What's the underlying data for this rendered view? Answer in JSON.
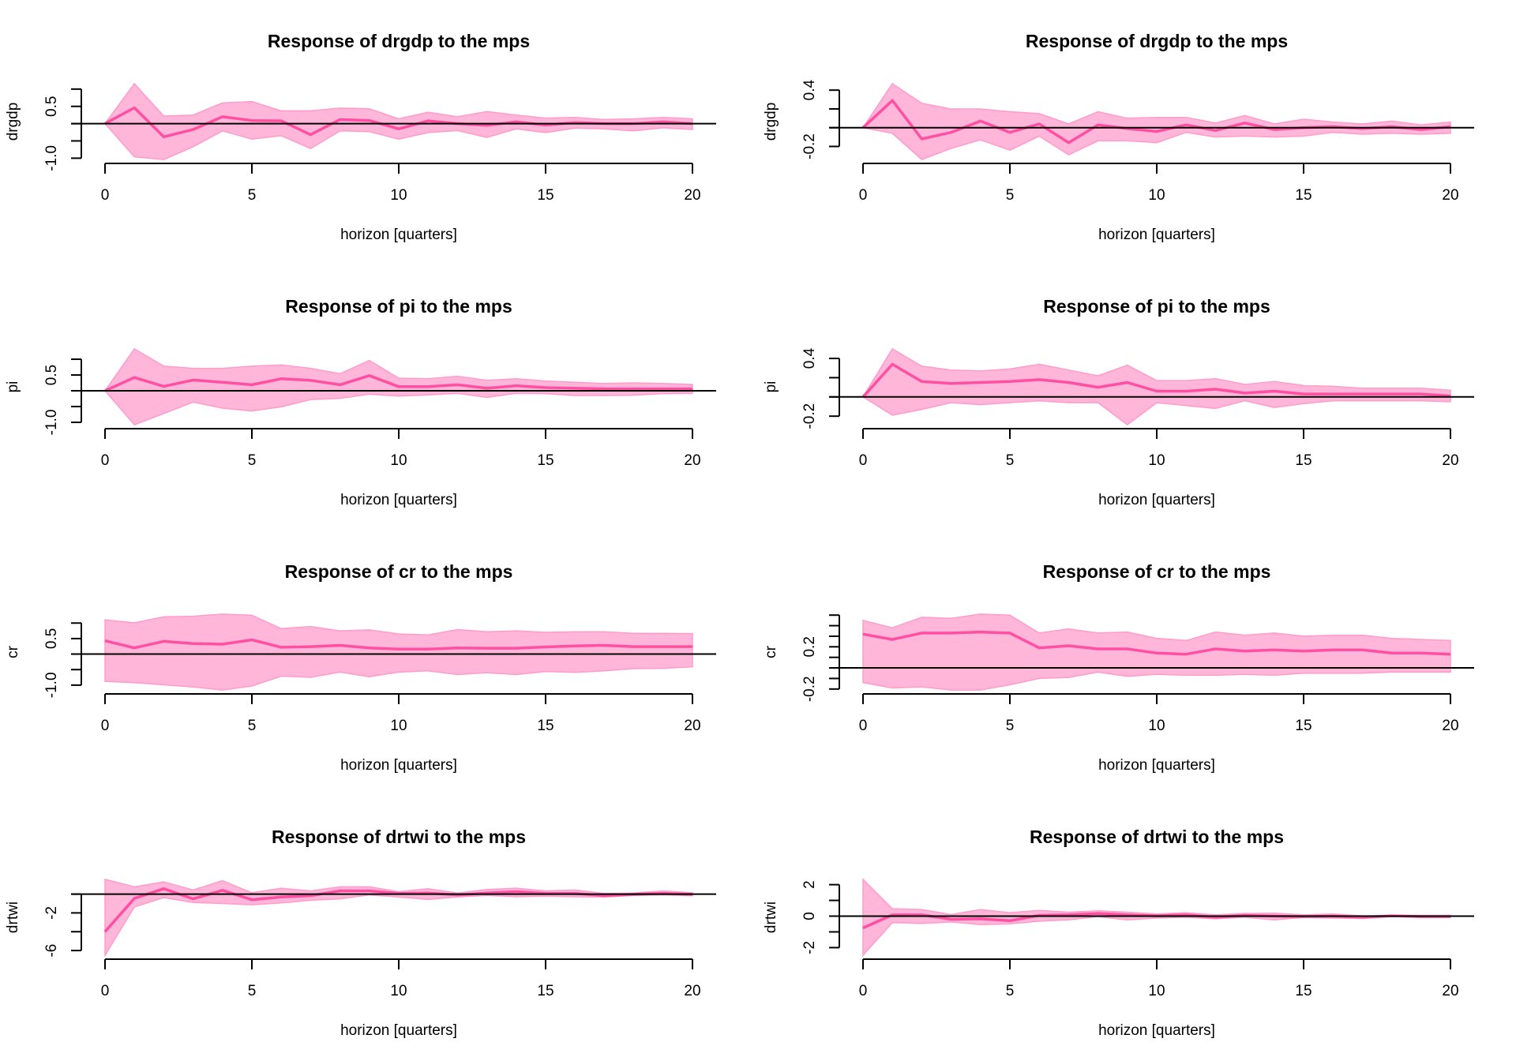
{
  "figure": {
    "layout": "4 rows x 2 columns",
    "colors": {
      "band_fill": "#ffb6d9",
      "band_edge": "#ff9ccb",
      "line": "#ff4fa3",
      "zero_line": "#000000"
    }
  },
  "chart_data": [
    {
      "type": "area",
      "title": "Response of drgdp to the mps",
      "xlabel": "horizon [quarters]",
      "ylabel": "drgdp",
      "x": [
        0,
        1,
        2,
        3,
        4,
        5,
        6,
        7,
        8,
        9,
        10,
        11,
        12,
        13,
        14,
        15,
        16,
        17,
        18,
        19,
        20
      ],
      "x_ticks": [
        0,
        5,
        10,
        15,
        20
      ],
      "y_ticks": [
        1.0,
        0.5,
        0,
        -0.5,
        -1.0
      ],
      "y_tick_labels": [
        "",
        "0.5",
        "",
        "",
        "-1.0"
      ],
      "series": [
        {
          "name": "response",
          "values": [
            0,
            0.46,
            -0.38,
            -0.17,
            0.2,
            0.09,
            0.08,
            -0.32,
            0.12,
            0.09,
            -0.15,
            0.08,
            0,
            -0.05,
            0.05,
            -0.04,
            0.03,
            0,
            0,
            0.05,
            0
          ]
        },
        {
          "name": "upper",
          "values": [
            0,
            1.16,
            0.22,
            0.25,
            0.6,
            0.64,
            0.37,
            0.37,
            0.45,
            0.43,
            0.14,
            0.33,
            0.2,
            0.35,
            0.25,
            0.16,
            0.18,
            0.12,
            0.14,
            0.18,
            0.14
          ]
        },
        {
          "name": "lower",
          "values": [
            0,
            -0.96,
            -1.04,
            -0.67,
            -0.21,
            -0.45,
            -0.35,
            -0.72,
            -0.21,
            -0.23,
            -0.45,
            -0.26,
            -0.2,
            -0.4,
            -0.15,
            -0.26,
            -0.13,
            -0.15,
            -0.21,
            -0.12,
            -0.17
          ]
        }
      ]
    },
    {
      "type": "area",
      "title": "Response of drgdp to the mps",
      "xlabel": "horizon [quarters]",
      "ylabel": "drgdp",
      "x": [
        0,
        1,
        2,
        3,
        4,
        5,
        6,
        7,
        8,
        9,
        10,
        11,
        12,
        13,
        14,
        15,
        16,
        17,
        18,
        19,
        20
      ],
      "x_ticks": [
        0,
        5,
        10,
        15,
        20
      ],
      "y_ticks": [
        0.4,
        0.2,
        0,
        -0.2
      ],
      "y_tick_labels": [
        "0.4",
        "",
        "",
        "-0.2"
      ],
      "series": [
        {
          "name": "response",
          "values": [
            0,
            0.29,
            -0.12,
            -0.05,
            0.07,
            -0.05,
            0.04,
            -0.16,
            0.03,
            -0.01,
            -0.04,
            0.03,
            -0.03,
            0.05,
            -0.02,
            0,
            0.01,
            -0.01,
            0.01,
            -0.02,
            0.01
          ]
        },
        {
          "name": "upper",
          "values": [
            0,
            0.47,
            0.26,
            0.2,
            0.2,
            0.17,
            0.15,
            0.04,
            0.17,
            0.1,
            0.11,
            0.11,
            0.05,
            0.13,
            0.04,
            0.09,
            0.06,
            0.04,
            0.07,
            0.03,
            0.06
          ]
        },
        {
          "name": "lower",
          "values": [
            0,
            -0.06,
            -0.34,
            -0.22,
            -0.13,
            -0.24,
            -0.09,
            -0.29,
            -0.14,
            -0.14,
            -0.16,
            -0.05,
            -0.1,
            -0.09,
            -0.1,
            -0.09,
            -0.05,
            -0.07,
            -0.06,
            -0.07,
            -0.06
          ]
        }
      ]
    },
    {
      "type": "area",
      "title": "Response of pi to the mps",
      "xlabel": "horizon [quarters]",
      "ylabel": "pi",
      "x": [
        0,
        1,
        2,
        3,
        4,
        5,
        6,
        7,
        8,
        9,
        10,
        11,
        12,
        13,
        14,
        15,
        16,
        17,
        18,
        19,
        20
      ],
      "x_ticks": [
        0,
        5,
        10,
        15,
        20
      ],
      "y_ticks": [
        1.0,
        0.5,
        0,
        -0.5,
        -1.0
      ],
      "y_tick_labels": [
        "",
        "0.5",
        "",
        "",
        "-1.0"
      ],
      "series": [
        {
          "name": "response",
          "values": [
            0,
            0.42,
            0.14,
            0.34,
            0.27,
            0.19,
            0.38,
            0.33,
            0.19,
            0.48,
            0.13,
            0.13,
            0.19,
            0.08,
            0.16,
            0.1,
            0.08,
            0.06,
            0.06,
            0.06,
            0.06
          ]
        },
        {
          "name": "upper",
          "values": [
            0,
            1.33,
            0.78,
            0.71,
            0.71,
            0.78,
            0.82,
            0.71,
            0.54,
            0.96,
            0.4,
            0.38,
            0.46,
            0.33,
            0.38,
            0.31,
            0.27,
            0.23,
            0.25,
            0.23,
            0.2
          ]
        },
        {
          "name": "lower",
          "values": [
            0,
            -1.08,
            -0.72,
            -0.36,
            -0.55,
            -0.64,
            -0.51,
            -0.28,
            -0.24,
            -0.11,
            -0.17,
            -0.13,
            -0.08,
            -0.21,
            -0.08,
            -0.09,
            -0.15,
            -0.15,
            -0.14,
            -0.09,
            -0.08
          ]
        }
      ]
    },
    {
      "type": "area",
      "title": "Response of pi to the mps",
      "xlabel": "horizon [quarters]",
      "ylabel": "pi",
      "x": [
        0,
        1,
        2,
        3,
        4,
        5,
        6,
        7,
        8,
        9,
        10,
        11,
        12,
        13,
        14,
        15,
        16,
        17,
        18,
        19,
        20
      ],
      "x_ticks": [
        0,
        5,
        10,
        15,
        20
      ],
      "y_ticks": [
        0.4,
        0.2,
        0,
        -0.2
      ],
      "y_tick_labels": [
        "0.4",
        "",
        "",
        "-0.2"
      ],
      "series": [
        {
          "name": "response",
          "values": [
            0,
            0.34,
            0.16,
            0.14,
            0.15,
            0.16,
            0.18,
            0.15,
            0.1,
            0.15,
            0.06,
            0.06,
            0.08,
            0.04,
            0.06,
            0.03,
            0.03,
            0.03,
            0.03,
            0.03,
            0.01
          ]
        },
        {
          "name": "upper",
          "values": [
            0,
            0.5,
            0.32,
            0.28,
            0.27,
            0.29,
            0.34,
            0.28,
            0.22,
            0.33,
            0.17,
            0.17,
            0.19,
            0.13,
            0.16,
            0.12,
            0.11,
            0.09,
            0.09,
            0.09,
            0.07
          ]
        },
        {
          "name": "lower",
          "values": [
            0,
            -0.19,
            -0.13,
            -0.06,
            -0.08,
            -0.06,
            -0.04,
            -0.06,
            -0.06,
            -0.29,
            -0.06,
            -0.09,
            -0.12,
            -0.04,
            -0.11,
            -0.07,
            -0.04,
            -0.04,
            -0.04,
            -0.04,
            -0.05
          ]
        }
      ]
    },
    {
      "type": "area",
      "title": "Response of cr to the mps",
      "xlabel": "horizon [quarters]",
      "ylabel": "cr",
      "x": [
        0,
        1,
        2,
        3,
        4,
        5,
        6,
        7,
        8,
        9,
        10,
        11,
        12,
        13,
        14,
        15,
        16,
        17,
        18,
        19,
        20
      ],
      "x_ticks": [
        0,
        5,
        10,
        15,
        20
      ],
      "y_ticks": [
        1.0,
        0.5,
        0,
        -0.5,
        -1.0
      ],
      "y_tick_labels": [
        "",
        "0.5",
        "",
        "",
        "-1.0"
      ],
      "series": [
        {
          "name": "response",
          "values": [
            0.43,
            0.2,
            0.41,
            0.34,
            0.32,
            0.46,
            0.22,
            0.24,
            0.28,
            0.2,
            0.16,
            0.16,
            0.2,
            0.19,
            0.19,
            0.23,
            0.26,
            0.28,
            0.24,
            0.24,
            0.24
          ]
        },
        {
          "name": "upper",
          "values": [
            1.1,
            1.01,
            1.2,
            1.22,
            1.29,
            1.25,
            0.82,
            0.89,
            0.75,
            0.78,
            0.65,
            0.62,
            0.79,
            0.72,
            0.75,
            0.7,
            0.72,
            0.72,
            0.67,
            0.67,
            0.66
          ]
        },
        {
          "name": "lower",
          "values": [
            -0.88,
            -0.92,
            -0.99,
            -1.06,
            -1.16,
            -1.03,
            -0.71,
            -0.75,
            -0.58,
            -0.73,
            -0.58,
            -0.54,
            -0.66,
            -0.6,
            -0.66,
            -0.56,
            -0.59,
            -0.54,
            -0.47,
            -0.46,
            -0.41
          ]
        }
      ]
    },
    {
      "type": "area",
      "title": "Response of cr to the mps",
      "xlabel": "horizon [quarters]",
      "ylabel": "cr",
      "x": [
        0,
        1,
        2,
        3,
        4,
        5,
        6,
        7,
        8,
        9,
        10,
        11,
        12,
        13,
        14,
        15,
        16,
        17,
        18,
        19,
        20
      ],
      "x_ticks": [
        0,
        5,
        10,
        15,
        20
      ],
      "y_ticks": [
        0.5,
        0.4,
        0.3,
        0.2,
        0.1,
        0,
        -0.1,
        -0.2
      ],
      "y_tick_labels": [
        "",
        "",
        "",
        "0.2",
        "",
        "",
        "",
        "-0.2"
      ],
      "series": [
        {
          "name": "response",
          "values": [
            0.32,
            0.27,
            0.33,
            0.33,
            0.34,
            0.33,
            0.19,
            0.21,
            0.18,
            0.18,
            0.14,
            0.13,
            0.18,
            0.16,
            0.17,
            0.16,
            0.17,
            0.17,
            0.14,
            0.14,
            0.13
          ]
        },
        {
          "name": "upper",
          "values": [
            0.45,
            0.38,
            0.48,
            0.47,
            0.51,
            0.5,
            0.33,
            0.37,
            0.33,
            0.34,
            0.28,
            0.26,
            0.34,
            0.31,
            0.33,
            0.3,
            0.31,
            0.31,
            0.28,
            0.27,
            0.26
          ]
        },
        {
          "name": "lower",
          "values": [
            -0.14,
            -0.19,
            -0.18,
            -0.21,
            -0.21,
            -0.16,
            -0.1,
            -0.09,
            -0.04,
            -0.08,
            -0.06,
            -0.07,
            -0.07,
            -0.06,
            -0.07,
            -0.05,
            -0.05,
            -0.05,
            -0.04,
            -0.04,
            -0.04
          ]
        }
      ]
    },
    {
      "type": "area",
      "title": "Response of drtwi to the mps",
      "xlabel": "horizon [quarters]",
      "ylabel": "drtwi",
      "x": [
        0,
        1,
        2,
        3,
        4,
        5,
        6,
        7,
        8,
        9,
        10,
        11,
        12,
        13,
        14,
        15,
        16,
        17,
        18,
        19,
        20
      ],
      "x_ticks": [
        0,
        5,
        10,
        15,
        20
      ],
      "y_ticks": [
        0,
        -2,
        -4,
        -6
      ],
      "y_tick_labels": [
        "",
        "-2",
        "",
        "-6"
      ],
      "series": [
        {
          "name": "response",
          "values": [
            -4.0,
            -0.46,
            0.57,
            -0.51,
            0.4,
            -0.6,
            -0.31,
            -0.17,
            0.34,
            0.34,
            0.06,
            0.11,
            -0.09,
            0.11,
            0.26,
            0.06,
            0.06,
            -0.17,
            -0.03,
            0.06,
            -0.03
          ]
        },
        {
          "name": "upper",
          "values": [
            1.57,
            0.77,
            1.29,
            0.43,
            1.43,
            0.14,
            0.63,
            0.34,
            0.77,
            0.77,
            0.26,
            0.57,
            0.11,
            0.49,
            0.63,
            0.34,
            0.43,
            0.06,
            0.11,
            0.34,
            0.14
          ]
        },
        {
          "name": "lower",
          "values": [
            -6.51,
            -1.37,
            -0.37,
            -0.89,
            -1.0,
            -1.14,
            -0.94,
            -0.66,
            -0.51,
            -0.09,
            -0.31,
            -0.57,
            -0.31,
            -0.14,
            -0.29,
            -0.23,
            -0.29,
            -0.31,
            -0.14,
            -0.09,
            -0.17
          ]
        }
      ]
    },
    {
      "type": "area",
      "title": "Response of drtwi to the mps",
      "xlabel": "horizon [quarters]",
      "ylabel": "drtwi",
      "x": [
        0,
        1,
        2,
        3,
        4,
        5,
        6,
        7,
        8,
        9,
        10,
        11,
        12,
        13,
        14,
        15,
        16,
        17,
        18,
        19,
        20
      ],
      "x_ticks": [
        0,
        5,
        10,
        15,
        20
      ],
      "y_ticks": [
        2,
        1,
        0,
        -1,
        -2
      ],
      "y_tick_labels": [
        "2",
        "",
        "0",
        "",
        "-2"
      ],
      "series": [
        {
          "name": "response",
          "values": [
            -0.75,
            0.08,
            0.08,
            -0.2,
            -0.17,
            -0.29,
            0.05,
            0.08,
            0.17,
            0.08,
            0.02,
            0.08,
            -0.07,
            0.05,
            0,
            -0.03,
            0,
            -0.07,
            0.02,
            -0.03,
            -0.03
          ]
        },
        {
          "name": "upper",
          "values": [
            2.34,
            0.47,
            0.42,
            0.1,
            0.42,
            0.22,
            0.36,
            0.25,
            0.34,
            0.25,
            0.14,
            0.22,
            0.08,
            0.17,
            0.19,
            0.08,
            0.14,
            0.02,
            0.05,
            0.05,
            0.05
          ]
        },
        {
          "name": "lower",
          "values": [
            -2.49,
            -0.41,
            -0.46,
            -0.37,
            -0.54,
            -0.49,
            -0.32,
            -0.24,
            -0.03,
            -0.24,
            -0.12,
            -0.07,
            -0.17,
            -0.07,
            -0.24,
            -0.08,
            -0.12,
            -0.15,
            -0.03,
            -0.08,
            -0.07
          ]
        }
      ]
    }
  ]
}
